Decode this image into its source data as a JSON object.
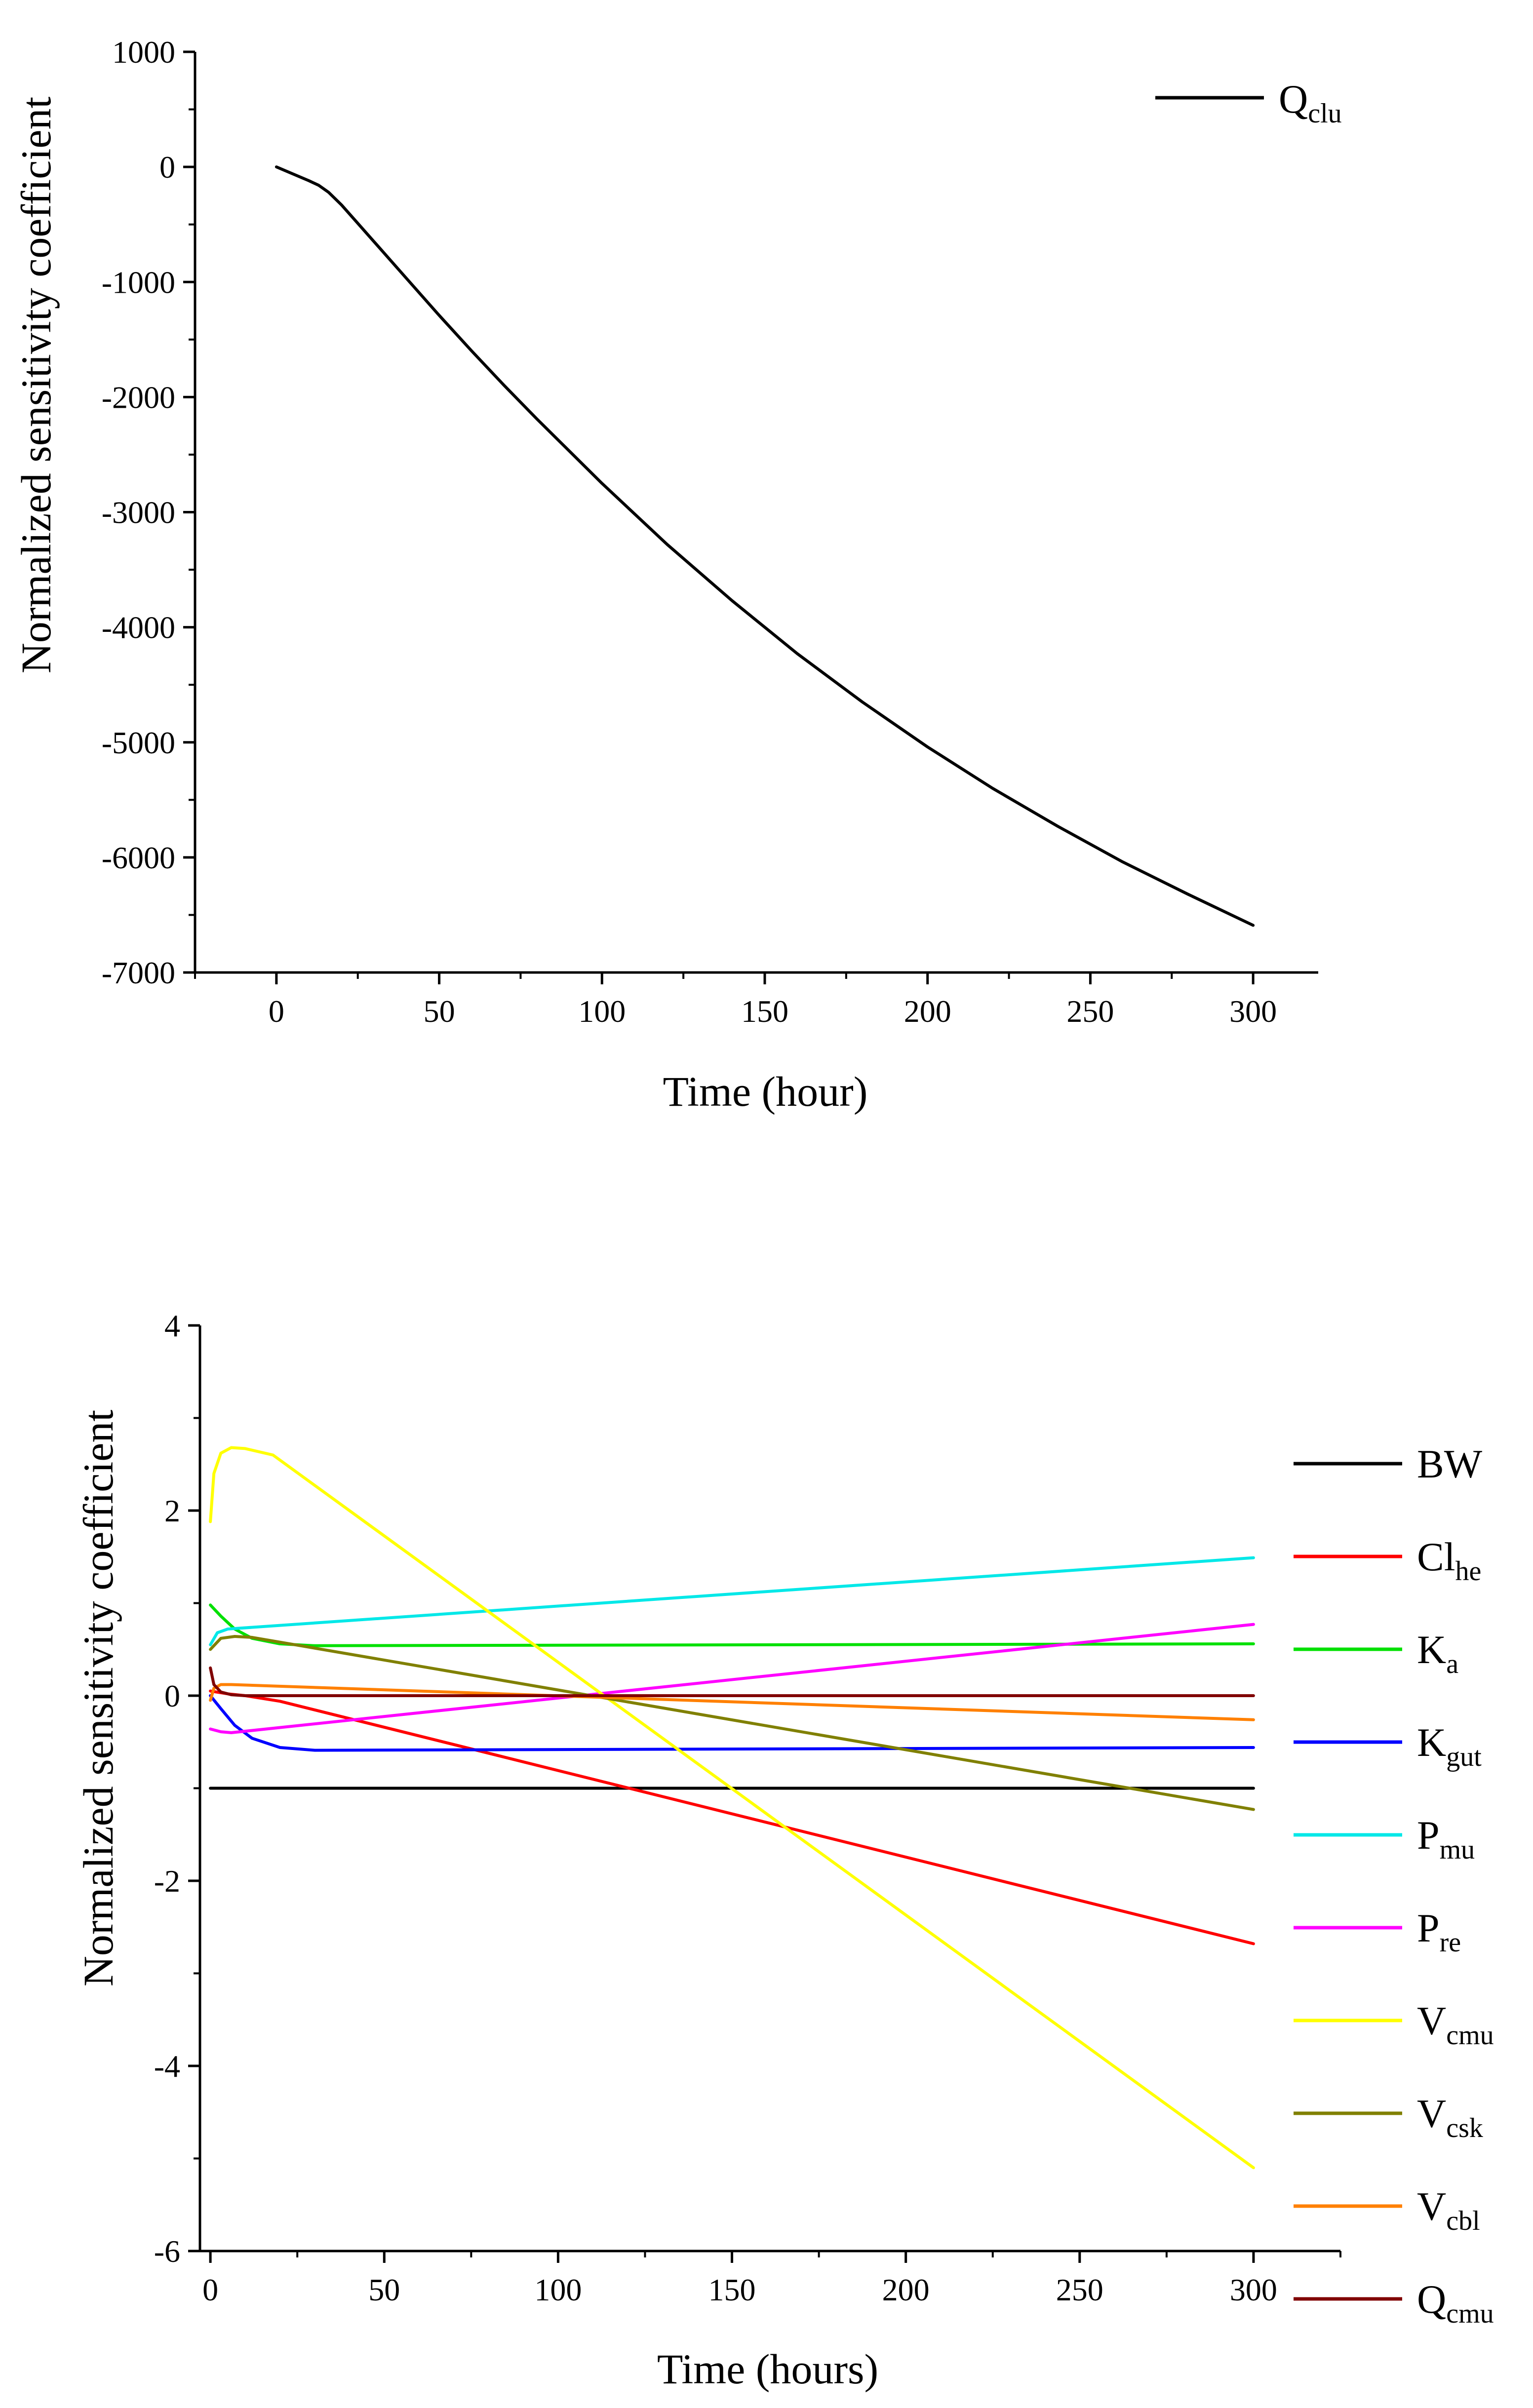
{
  "colors": {
    "axis": "#000000",
    "background": "#ffffff"
  },
  "chart_data": [
    {
      "type": "line",
      "title": "",
      "xlabel": "Time (hour)",
      "ylabel": "Normalized sensitivity coefficient",
      "xlim": [
        -25,
        320
      ],
      "ylim": [
        -7000,
        1000
      ],
      "xticks": [
        0,
        50,
        100,
        150,
        200,
        250,
        300
      ],
      "xtick_labels": [
        "0",
        "50",
        "100",
        "150",
        "200",
        "250",
        "300"
      ],
      "yticks": [
        1000,
        0,
        -1000,
        -2000,
        -3000,
        -4000,
        -5000,
        -6000,
        -7000
      ],
      "ytick_labels": [
        "1000",
        "0",
        "-1000",
        "-2000",
        "-3000",
        "-4000",
        "-5000",
        "-6000",
        "-7000"
      ],
      "legend_position": "top-right",
      "grid": false,
      "series": [
        {
          "name": "Q",
          "subscript": "clu",
          "color": "#000000",
          "x": [
            0,
            5,
            10,
            13,
            16,
            20,
            25,
            30,
            40,
            50,
            60,
            70,
            80,
            90,
            100,
            120,
            140,
            160,
            180,
            200,
            220,
            240,
            260,
            280,
            300
          ],
          "y": [
            0,
            -60,
            -120,
            -160,
            -220,
            -330,
            -490,
            -650,
            -970,
            -1290,
            -1600,
            -1900,
            -2190,
            -2470,
            -2750,
            -3280,
            -3770,
            -4230,
            -4650,
            -5040,
            -5400,
            -5730,
            -6040,
            -6320,
            -6590
          ]
        }
      ]
    },
    {
      "type": "line",
      "title": "",
      "xlabel": "Time (hours)",
      "ylabel": "Normalized sensitivity coefficient",
      "xlim": [
        -3,
        325
      ],
      "ylim": [
        -6,
        4
      ],
      "xticks": [
        0,
        50,
        100,
        150,
        200,
        250,
        300
      ],
      "xtick_labels": [
        "0",
        "50",
        "100",
        "150",
        "200",
        "250",
        "300"
      ],
      "yticks": [
        4,
        2,
        0,
        -2,
        -4,
        -6
      ],
      "ytick_labels": [
        "4",
        "2",
        "0",
        "-2",
        "-4",
        "-6"
      ],
      "legend_position": "right",
      "grid": false,
      "series": [
        {
          "name": "BW",
          "subscript": "",
          "color": "#000000",
          "x": [
            0,
            300
          ],
          "y": [
            -1.0,
            -1.0
          ]
        },
        {
          "name": "Cl",
          "subscript": "he",
          "color": "#ff0000",
          "x": [
            0,
            5,
            10,
            20,
            300
          ],
          "y": [
            0.05,
            0.02,
            0.0,
            -0.06,
            -2.68
          ]
        },
        {
          "name": "K",
          "subscript": "a",
          "color": "#00e000",
          "x": [
            0,
            3,
            7,
            12,
            20,
            30,
            300
          ],
          "y": [
            0.98,
            0.86,
            0.72,
            0.62,
            0.56,
            0.54,
            0.56
          ]
        },
        {
          "name": "K",
          "subscript": "gut",
          "color": "#0000ff",
          "x": [
            0,
            3,
            7,
            12,
            20,
            30,
            300
          ],
          "y": [
            0.0,
            -0.14,
            -0.32,
            -0.46,
            -0.56,
            -0.59,
            -0.56
          ]
        },
        {
          "name": "P",
          "subscript": "mu",
          "color": "#00e8e8",
          "x": [
            0,
            2,
            5,
            300
          ],
          "y": [
            0.55,
            0.68,
            0.72,
            1.49
          ]
        },
        {
          "name": "P",
          "subscript": "re",
          "color": "#ff00ff",
          "x": [
            0,
            3,
            6,
            300
          ],
          "y": [
            -0.36,
            -0.39,
            -0.4,
            0.77
          ]
        },
        {
          "name": "V",
          "subscript": "cmu",
          "color": "#ffff00",
          "x": [
            0,
            1,
            3,
            6,
            10,
            18,
            300
          ],
          "y": [
            1.88,
            2.4,
            2.62,
            2.68,
            2.67,
            2.6,
            -5.1
          ]
        },
        {
          "name": "V",
          "subscript": "csk",
          "color": "#808000",
          "x": [
            0,
            3,
            7,
            12,
            300
          ],
          "y": [
            0.5,
            0.62,
            0.64,
            0.63,
            -1.23
          ]
        },
        {
          "name": "V",
          "subscript": "cbl",
          "color": "#ff8000",
          "x": [
            0,
            1,
            3,
            6,
            300
          ],
          "y": [
            -0.05,
            0.08,
            0.12,
            0.12,
            -0.26
          ]
        },
        {
          "name": "Q",
          "subscript": "cmu",
          "color": "#800000",
          "x": [
            0,
            1,
            3,
            6,
            10,
            300
          ],
          "y": [
            0.3,
            0.12,
            0.04,
            0.01,
            0.0,
            0.0
          ]
        }
      ]
    }
  ]
}
